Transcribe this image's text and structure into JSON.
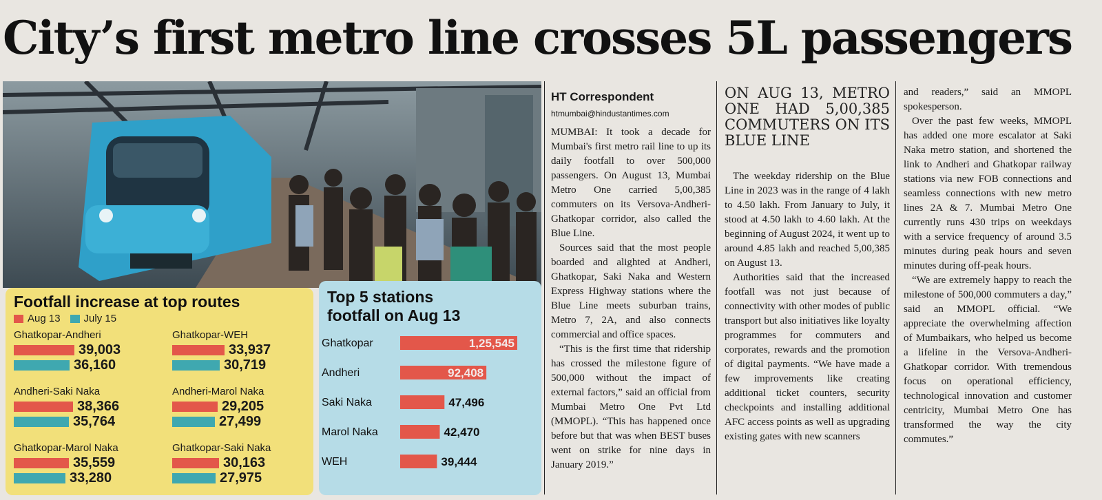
{
  "headline": "City’s first metro line crosses 5L passengers",
  "footfall": {
    "title": "Footfall increase at top routes",
    "legend": [
      {
        "label": "Aug 13",
        "color": "#e3574a"
      },
      {
        "label": "July 15",
        "color": "#3fa8b0"
      }
    ],
    "routes": [
      {
        "name": "Ghatkopar-Andheri",
        "aug13": "39,003",
        "jul15": "36,160",
        "aug13_value": 39003,
        "jul15_value": 36160
      },
      {
        "name": "Ghatkopar-WEH",
        "aug13": "33,937",
        "jul15": "30,719",
        "aug13_value": 33937,
        "jul15_value": 30719
      },
      {
        "name": "Andheri-Saki Naka",
        "aug13": "38,366",
        "jul15": "35,764",
        "aug13_value": 38366,
        "jul15_value": 35764
      },
      {
        "name": "Andheri-Marol Naka",
        "aug13": "29,205",
        "jul15": "27,499",
        "aug13_value": 29205,
        "jul15_value": 27499
      },
      {
        "name": "Ghatkopar-Marol Naka",
        "aug13": "35,559",
        "jul15": "33,280",
        "aug13_value": 35559,
        "jul15_value": 33280
      },
      {
        "name": "Ghatkopar-Saki Naka",
        "aug13": "30,163",
        "jul15": "27,975",
        "aug13_value": 30163,
        "jul15_value": 27975
      }
    ]
  },
  "top5": {
    "title_line1": "Top 5 stations",
    "title_line2": "footfall on Aug  13"
  },
  "chart_data": {
    "type": "bar",
    "title": "Top 5 stations footfall on Aug 13",
    "categories": [
      "Ghatkopar",
      "Andheri",
      "Saki Naka",
      "Marol Naka",
      "WEH"
    ],
    "values": [
      125545,
      92408,
      47496,
      42470,
      39444
    ],
    "labels": [
      "1,25,545",
      "92,408",
      "47,496",
      "42,470",
      "39,444"
    ],
    "bar_color": "#e3574a"
  },
  "article": {
    "byline": "HT Correspondent",
    "email": "htmumbai@hindustantimes.com",
    "col1": [
      "MUMBAI: It took a decade for Mumbai's first metro rail line to up its daily footfall to over 500,000 passengers. On August 13, Mumbai Metro One carried 5,00,385 commuters on its Versova-Andheri-Ghatkopar corridor, also called the Blue Line.",
      "Sources said that the most people boarded and alighted at Andheri, Ghatkopar, Saki Naka and Western Express Highway stations where the Blue Line meets suburban trains, Metro 7, 2A, and also connects commercial and office spaces.",
      "“This is the first time that ridership has crossed the milestone figure of 500,000 without the impact of external factors,” said an official from Mumbai Metro One Pvt Ltd (MMOPL). “This has happened once before but that was when BEST buses went on strike for nine days in January 2019.”"
    ],
    "pull_quote": "ON AUG 13, METRO ONE HAD 5,00,385 COMMUTERS ON ITS BLUE LINE",
    "col2": [
      "The weekday ridership on the Blue Line in 2023 was in the range of 4 lakh to 4.50 lakh. From January to July, it stood at 4.50 lakh to 4.60 lakh. At the beginning of August 2024, it went up to around 4.85 lakh and reached 5,00,385 on August 13.",
      "Authorities said that the increased footfall was not just because of connectivity with other modes of public transport but also initiatives like loyalty programmes for commuters and corporates, rewards and the promotion of digital payments. “We have made a few improvements like creating additional ticket counters, security checkpoints and installing additional AFC access points as well as upgrading existing gates with new scanners"
    ],
    "col3": [
      "and readers,” said an MMOPL spokesperson.",
      "Over the past few weeks, MMOPL has added one more escalator at Saki Naka metro station, and shortened the link to Andheri and Ghatkopar railway stations via new FOB connections and seamless connections with new metro lines 2A & 7. Mumbai Metro One currently runs 430 trips on weekdays with a service frequency of around 3.5 minutes during peak hours and seven minutes during off-peak hours.",
      "“We are extremely happy to reach the milestone of 500,000 commuters a day,” said an MMOPL official. “We appreciate the overwhelming affection of Mumbaikars, who helped us become a lifeline in the Versova-Andheri-Ghatkopar corridor. With tremendous focus on operational efficiency, technological innovation and customer centricity, Mumbai Metro One has transformed the way the city commutes.”"
    ]
  }
}
